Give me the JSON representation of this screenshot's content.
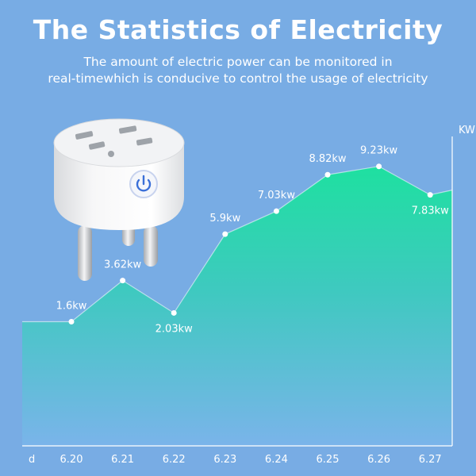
{
  "header": {
    "title": "The Statistics of Electricity",
    "subtitle_line1": "The amount of electric power can be monitored in",
    "subtitle_line2": "real-timewhich is conducive to control the usage of electricity"
  },
  "chart_data": {
    "type": "area",
    "title": "The Statistics of Electricity",
    "xlabel": "d",
    "ylabel": "KW",
    "categories": [
      "6.20",
      "6.21",
      "6.22",
      "6.23",
      "6.24",
      "6.25",
      "6.26",
      "6.27"
    ],
    "series": [
      {
        "values": [
          1.6,
          3.62,
          2.03,
          5.9,
          7.03,
          8.82,
          9.23,
          7.83
        ],
        "labels": [
          "1.6kw",
          "3.62kw",
          "2.03kw",
          "5.9kw",
          "7.03kw",
          "8.82kw",
          "9.23kw",
          "7.83kw"
        ]
      }
    ],
    "ylim": [
      -4.5,
      10.7
    ],
    "grid": false,
    "legend": "none"
  },
  "colors": {
    "background": "#78ace4",
    "area_top": "#1ee0a0",
    "area_bottom": "#7ab4ea",
    "axis": "#ffffff",
    "text": "#ffffff",
    "power_button": "#3a6fd8"
  },
  "icons": {
    "product": "smart-plug-icon",
    "power": "power-button-icon"
  }
}
